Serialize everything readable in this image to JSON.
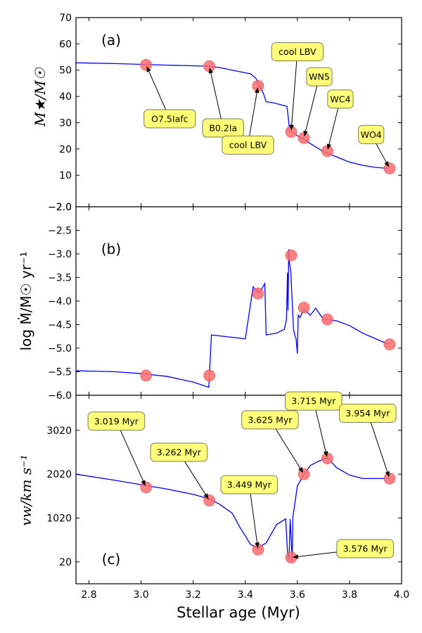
{
  "chart_data": {
    "type": "line",
    "shared_x": {
      "label": "Stellar age (Myr)",
      "lim": [
        2.75,
        4.0
      ],
      "ticks": [
        2.8,
        3.0,
        3.2,
        3.4,
        3.6,
        3.8,
        4.0
      ],
      "tick_labels": [
        "2.8",
        "3.0",
        "3.2",
        "3.4",
        "3.6",
        "3.8",
        "4.0"
      ]
    },
    "panels": [
      {
        "id": "a",
        "panel_label": "(a)",
        "ylabel": "M★/M☉",
        "ylim": [
          -2,
          70
        ],
        "yticks": [
          -2,
          10,
          20,
          30,
          40,
          50,
          60,
          70
        ],
        "ytick_labels": [
          "−2.0",
          "10",
          "20",
          "30",
          "40",
          "50",
          "60",
          "70"
        ],
        "line_color": "#0000ff",
        "line": {
          "x": [
            2.75,
            2.9,
            3.1,
            3.26,
            3.3,
            3.35,
            3.42,
            3.44,
            3.45,
            3.47,
            3.48,
            3.51,
            3.55,
            3.56,
            3.565,
            3.57,
            3.575,
            3.58,
            3.6,
            3.62,
            3.65,
            3.7,
            3.75,
            3.8,
            3.85,
            3.9,
            3.95
          ],
          "y": [
            52.8,
            52.5,
            51.9,
            51.5,
            51.0,
            50.0,
            48.6,
            47.0,
            45.0,
            41.0,
            38.0,
            37.5,
            36.5,
            36.2,
            32.0,
            27.0,
            26.8,
            26.5,
            25.0,
            24.0,
            22.0,
            19.0,
            17.0,
            15.0,
            13.8,
            13.0,
            12.6
          ]
        },
        "markers": {
          "color": "#ff6b6b",
          "x": [
            3.019,
            3.262,
            3.449,
            3.576,
            3.625,
            3.715,
            3.954
          ],
          "y": [
            52.0,
            51.5,
            44.0,
            26.5,
            24.2,
            19.2,
            12.6
          ]
        },
        "annotations": [
          {
            "text": "O7.5Iafc",
            "text_x": 3.11,
            "text_y": 31.5,
            "target_x": 3.019,
            "target_y": 52.0
          },
          {
            "text": "B0.2Ia",
            "text_x": 3.315,
            "text_y": 28.0,
            "target_x": 3.262,
            "target_y": 51.5
          },
          {
            "text": "cool LBV",
            "text_x": 3.41,
            "text_y": 21.5,
            "target_x": 3.449,
            "target_y": 44.0
          },
          {
            "text": "cool LBV",
            "text_x": 3.6,
            "text_y": 57.0,
            "target_x": 3.576,
            "target_y": 26.5
          },
          {
            "text": "WN5",
            "text_x": 3.684,
            "text_y": 47.5,
            "target_x": 3.625,
            "target_y": 24.2
          },
          {
            "text": "WC4",
            "text_x": 3.765,
            "text_y": 39.0,
            "target_x": 3.715,
            "target_y": 19.2
          },
          {
            "text": "WO4",
            "text_x": 3.883,
            "text_y": 25.5,
            "target_x": 3.954,
            "target_y": 12.6
          }
        ]
      },
      {
        "id": "b",
        "panel_label": "(b)",
        "ylabel": "log Ṁ/M☉ yr⁻¹",
        "ylim": [
          -6.0,
          -2.0
        ],
        "yticks": [
          -6.0,
          -5.5,
          -5.0,
          -4.5,
          -4.0,
          -3.5,
          -3.0,
          -2.5,
          -2.0
        ],
        "ytick_labels": [
          "−6.0",
          "−5.5",
          "−5.0",
          "−4.5",
          "−4.0",
          "−3.5",
          "−3.0",
          "−2.5",
          "−2.0"
        ],
        "line_color": "#0000ff",
        "line": {
          "x": [
            2.75,
            2.9,
            3.0,
            3.1,
            3.2,
            3.26,
            3.27,
            3.35,
            3.4,
            3.43,
            3.45,
            3.46,
            3.475,
            3.48,
            3.52,
            3.55,
            3.558,
            3.562,
            3.564,
            3.567,
            3.57,
            3.575,
            3.58,
            3.585,
            3.59,
            3.595,
            3.6,
            3.603,
            3.61,
            3.625,
            3.65,
            3.67,
            3.7,
            3.75,
            3.8,
            3.85,
            3.9,
            3.95
          ],
          "y": [
            -5.48,
            -5.5,
            -5.54,
            -5.6,
            -5.72,
            -5.83,
            -4.72,
            -4.77,
            -4.8,
            -3.7,
            -3.82,
            -3.77,
            -3.63,
            -4.72,
            -4.68,
            -4.6,
            -4.4,
            -3.4,
            -4.2,
            -2.9,
            -3.2,
            -3.4,
            -4.0,
            -4.6,
            -4.72,
            -4.8,
            -5.12,
            -4.3,
            -4.35,
            -4.18,
            -4.3,
            -4.15,
            -4.39,
            -4.42,
            -4.52,
            -4.68,
            -4.8,
            -4.92
          ]
        },
        "markers": {
          "color": "#ff6b6b",
          "x": [
            3.019,
            3.262,
            3.449,
            3.576,
            3.625,
            3.715,
            3.954
          ],
          "y": [
            -5.58,
            -5.58,
            -3.84,
            -3.03,
            -4.14,
            -4.39,
            -4.92
          ]
        }
      },
      {
        "id": "c",
        "panel_label": "(c)",
        "ylabel": "vw/km s⁻¹",
        "ylim": [
          -480,
          3820
        ],
        "yticks": [
          20,
          1020,
          2020,
          3020
        ],
        "ytick_labels": [
          "20",
          "1020",
          "2020",
          "3020"
        ],
        "line_color": "#0000ff",
        "line": {
          "x": [
            2.75,
            2.9,
            3.0,
            3.1,
            3.2,
            3.26,
            3.3,
            3.35,
            3.38,
            3.42,
            3.449,
            3.46,
            3.48,
            3.52,
            3.555,
            3.562,
            3.568,
            3.572,
            3.576,
            3.58,
            3.583,
            3.6,
            3.625,
            3.65,
            3.68,
            3.715,
            3.75,
            3.8,
            3.85,
            3.9,
            3.954
          ],
          "y": [
            2020,
            1880,
            1780,
            1680,
            1560,
            1460,
            1340,
            1130,
            800,
            420,
            320,
            380,
            450,
            870,
            1000,
            240,
            80,
            1000,
            520,
            40,
            1050,
            1750,
            2020,
            2220,
            2310,
            2400,
            2170,
            2000,
            1920,
            1920,
            1920
          ]
        },
        "markers": {
          "color": "#ff6b6b",
          "x": [
            3.019,
            3.262,
            3.449,
            3.576,
            3.625,
            3.715,
            3.954
          ],
          "y": [
            1720,
            1420,
            300,
            120,
            2020,
            2380,
            1920
          ]
        },
        "annotations": [
          {
            "text": "3.019 Myr",
            "text_x": 2.905,
            "text_y": 3230,
            "target_x": 3.019,
            "target_y": 1720
          },
          {
            "text": "3.262 Myr",
            "text_x": 3.145,
            "text_y": 2520,
            "target_x": 3.262,
            "target_y": 1420
          },
          {
            "text": "3.449 Myr",
            "text_x": 3.415,
            "text_y": 1780,
            "target_x": 3.449,
            "target_y": 300
          },
          {
            "text": "3.625 Myr",
            "text_x": 3.495,
            "text_y": 3260,
            "target_x": 3.625,
            "target_y": 2020
          },
          {
            "text": "3.715 Myr",
            "text_x": 3.662,
            "text_y": 3690,
            "target_x": 3.715,
            "target_y": 2380
          },
          {
            "text": "3.954 Myr",
            "text_x": 3.87,
            "text_y": 3410,
            "target_x": 3.954,
            "target_y": 1920
          },
          {
            "text": "3.576 Myr",
            "text_x": 3.86,
            "text_y": 320,
            "target_x": 3.576,
            "target_y": 120
          }
        ]
      }
    ]
  }
}
